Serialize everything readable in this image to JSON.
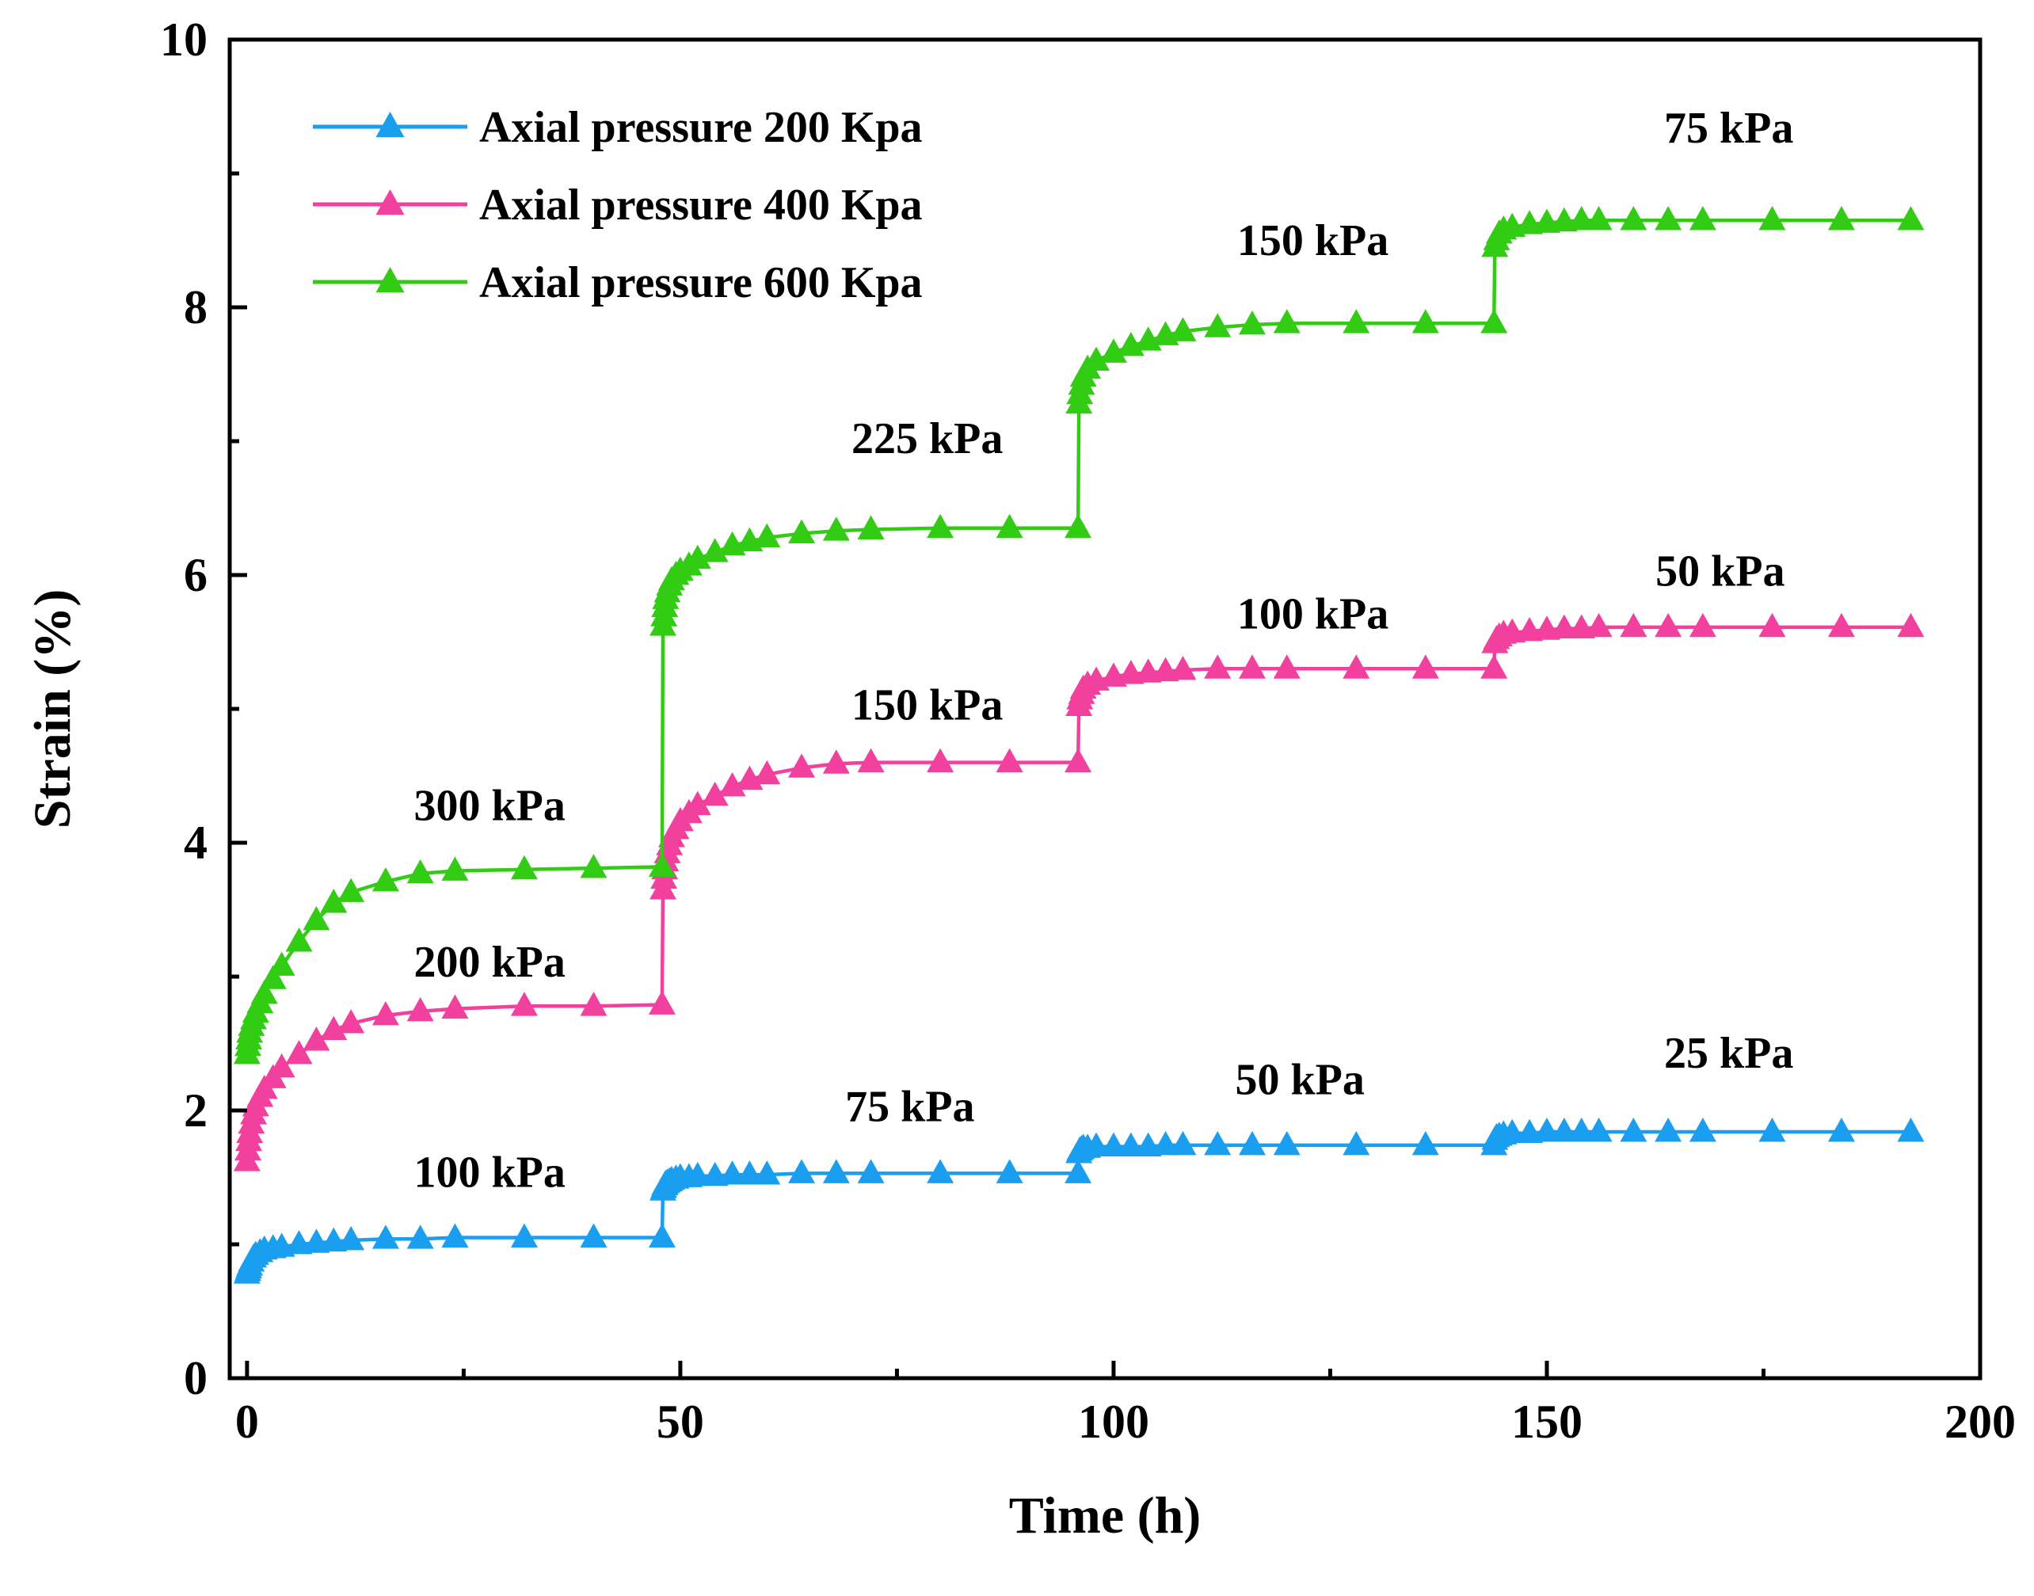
{
  "chart_data": {
    "type": "line",
    "title": "",
    "xlabel": "Time (h)",
    "ylabel": "Strain (%)",
    "xlim": [
      0,
      200
    ],
    "ylim": [
      0,
      10
    ],
    "x_ticks": [
      0,
      50,
      100,
      150,
      200
    ],
    "y_ticks": [
      0,
      2,
      4,
      6,
      8,
      10
    ],
    "grid": false,
    "legend_position": "top-left",
    "series": [
      {
        "name": "Axial pressure 200 Kpa",
        "color": "#1a9ff0",
        "marker": "triangle",
        "x": [
          0,
          0.1,
          0.2,
          0.3,
          0.5,
          0.75,
          1,
          1.5,
          2,
          3,
          4,
          6,
          8,
          10,
          12,
          16,
          20,
          24,
          32,
          40,
          47.9,
          48,
          48.1,
          48.2,
          48.3,
          48.5,
          48.75,
          49,
          49.5,
          50,
          51,
          52,
          54,
          56,
          58,
          60,
          64,
          68,
          72,
          80,
          88,
          95.9,
          96,
          96.1,
          96.3,
          96.5,
          97,
          98,
          100,
          102,
          104,
          106,
          108,
          112,
          116,
          120,
          128,
          136,
          143.9,
          144,
          144.2,
          144.5,
          145,
          146,
          148,
          150,
          152,
          154,
          156,
          160,
          164,
          168,
          176,
          184,
          192
        ],
        "y": [
          0.78,
          0.8,
          0.82,
          0.84,
          0.87,
          0.9,
          0.92,
          0.94,
          0.96,
          0.97,
          0.98,
          1.0,
          1.01,
          1.02,
          1.03,
          1.04,
          1.04,
          1.05,
          1.05,
          1.05,
          1.05,
          1.4,
          1.42,
          1.44,
          1.45,
          1.46,
          1.47,
          1.48,
          1.49,
          1.5,
          1.5,
          1.51,
          1.51,
          1.52,
          1.52,
          1.52,
          1.53,
          1.53,
          1.53,
          1.53,
          1.53,
          1.53,
          1.68,
          1.7,
          1.71,
          1.72,
          1.72,
          1.73,
          1.73,
          1.73,
          1.73,
          1.74,
          1.74,
          1.74,
          1.74,
          1.74,
          1.74,
          1.74,
          1.74,
          1.78,
          1.8,
          1.81,
          1.82,
          1.83,
          1.83,
          1.84,
          1.84,
          1.84,
          1.84,
          1.84,
          1.84,
          1.84,
          1.84,
          1.84,
          1.84
        ]
      },
      {
        "name": "Axial pressure 400 Kpa",
        "color": "#f2409e",
        "marker": "triangle",
        "x": [
          0,
          0.1,
          0.2,
          0.3,
          0.5,
          0.75,
          1,
          1.5,
          2,
          3,
          4,
          6,
          8,
          10,
          12,
          16,
          20,
          24,
          32,
          40,
          47.9,
          48,
          48.1,
          48.2,
          48.3,
          48.5,
          48.75,
          49,
          49.5,
          50,
          51,
          52,
          54,
          56,
          58,
          60,
          64,
          68,
          72,
          80,
          88,
          95.9,
          96,
          96.1,
          96.3,
          96.5,
          97,
          98,
          100,
          102,
          104,
          106,
          108,
          112,
          116,
          120,
          128,
          136,
          143.9,
          144,
          144.2,
          144.5,
          145,
          146,
          148,
          150,
          152,
          154,
          156,
          160,
          164,
          168,
          176,
          184,
          192
        ],
        "y": [
          1.62,
          1.7,
          1.77,
          1.83,
          1.9,
          1.97,
          2.03,
          2.1,
          2.16,
          2.24,
          2.32,
          2.42,
          2.52,
          2.6,
          2.65,
          2.71,
          2.74,
          2.76,
          2.78,
          2.78,
          2.79,
          3.65,
          3.73,
          3.8,
          3.86,
          3.92,
          3.98,
          4.04,
          4.1,
          4.16,
          4.22,
          4.28,
          4.35,
          4.42,
          4.47,
          4.51,
          4.56,
          4.59,
          4.6,
          4.6,
          4.6,
          4.6,
          5.02,
          5.07,
          5.11,
          5.15,
          5.18,
          5.21,
          5.24,
          5.26,
          5.27,
          5.28,
          5.29,
          5.3,
          5.3,
          5.3,
          5.3,
          5.3,
          5.3,
          5.49,
          5.52,
          5.54,
          5.56,
          5.57,
          5.58,
          5.59,
          5.6,
          5.6,
          5.61,
          5.61,
          5.61,
          5.61,
          5.61,
          5.61,
          5.61
        ]
      },
      {
        "name": "Axial pressure 600 Kpa",
        "color": "#33cc14",
        "marker": "triangle",
        "x": [
          0,
          0.1,
          0.2,
          0.3,
          0.5,
          0.75,
          1,
          1.5,
          2,
          3,
          4,
          6,
          8,
          10,
          12,
          16,
          20,
          24,
          32,
          40,
          47.9,
          48,
          48.1,
          48.2,
          48.3,
          48.5,
          48.75,
          49,
          49.5,
          50,
          51,
          52,
          54,
          56,
          58,
          60,
          64,
          68,
          72,
          80,
          88,
          95.9,
          96,
          96.1,
          96.3,
          96.5,
          97,
          98,
          100,
          102,
          104,
          106,
          108,
          112,
          116,
          120,
          128,
          136,
          143.9,
          144,
          144.2,
          144.5,
          145,
          146,
          148,
          150,
          152,
          154,
          156,
          160,
          164,
          168,
          176,
          184,
          192
        ],
        "y": [
          2.42,
          2.48,
          2.53,
          2.58,
          2.63,
          2.68,
          2.73,
          2.8,
          2.87,
          2.98,
          3.08,
          3.26,
          3.42,
          3.55,
          3.63,
          3.71,
          3.77,
          3.79,
          3.8,
          3.81,
          3.82,
          5.62,
          5.69,
          5.76,
          5.82,
          5.87,
          5.92,
          5.96,
          6.0,
          6.03,
          6.07,
          6.12,
          6.17,
          6.22,
          6.25,
          6.28,
          6.31,
          6.33,
          6.34,
          6.35,
          6.35,
          6.35,
          7.28,
          7.35,
          7.42,
          7.48,
          7.54,
          7.6,
          7.66,
          7.71,
          7.75,
          7.79,
          7.82,
          7.85,
          7.87,
          7.88,
          7.88,
          7.88,
          7.88,
          8.45,
          8.5,
          8.55,
          8.58,
          8.6,
          8.62,
          8.63,
          8.64,
          8.65,
          8.65,
          8.65,
          8.65,
          8.65,
          8.65,
          8.65,
          8.65
        ]
      }
    ],
    "annotations": [
      {
        "text": "100 kPa",
        "x": 28,
        "y": 1.43
      },
      {
        "text": "75 kPa",
        "x": 76.5,
        "y": 1.92
      },
      {
        "text": "50 kPa",
        "x": 121.5,
        "y": 2.12
      },
      {
        "text": "25 kPa",
        "x": 171,
        "y": 2.32
      },
      {
        "text": "200 kPa",
        "x": 28,
        "y": 3.0
      },
      {
        "text": "150 kPa",
        "x": 78.5,
        "y": 4.92
      },
      {
        "text": "100 kPa",
        "x": 123,
        "y": 5.6
      },
      {
        "text": "50 kPa",
        "x": 170,
        "y": 5.92
      },
      {
        "text": "300 kPa",
        "x": 28,
        "y": 4.17
      },
      {
        "text": "225 kPa",
        "x": 78.5,
        "y": 6.91
      },
      {
        "text": "150 kPa",
        "x": 123,
        "y": 8.39
      },
      {
        "text": "75 kPa",
        "x": 171,
        "y": 9.23
      }
    ]
  }
}
